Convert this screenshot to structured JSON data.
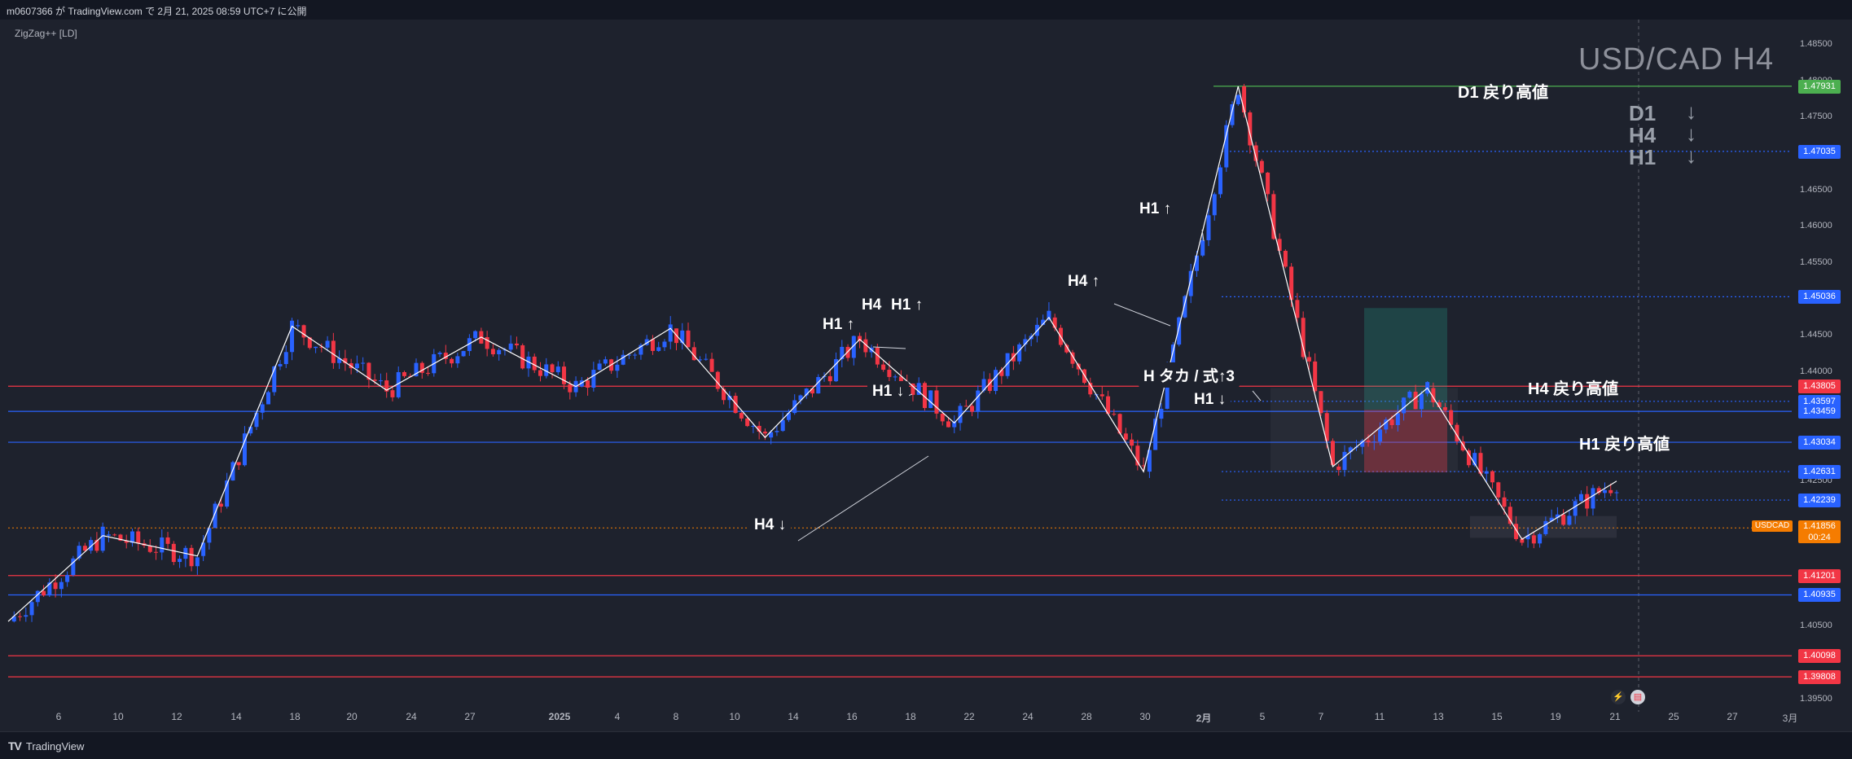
{
  "header": {
    "publish_info": "m0607366 が TradingView.com で 2月 21, 2025 08:59 UTC+7 に公開"
  },
  "indicator": "ZigZag++ [LD]",
  "footer": {
    "brand": "TradingView",
    "brand_logo": "TV"
  },
  "watermark": "USD/CAD H4",
  "trend_panel": [
    {
      "tf": "D1",
      "arrow": "↓"
    },
    {
      "tf": "H4",
      "arrow": "↓"
    },
    {
      "tf": "H1",
      "arrow": "↓"
    }
  ],
  "annotations": {
    "d1_high": "D1 戻り高値",
    "h4_high": "H4 戻り高値",
    "h1_high": "H1 戻り高値",
    "h1_up_a": "H1 ↑",
    "h4_a": "H4",
    "h1_up_b": "H1 ↑",
    "h1_down_a": "H1 ↓",
    "h4_down": "H4 ↓",
    "h4_up": "H4 ↑",
    "h1_up_c": "H1 ↑",
    "takane": "H タカ / 式↑3",
    "h1_down_b": "H1 ↓"
  },
  "symbol": {
    "ticker": "USDCAD",
    "price": "1.41856",
    "countdown": "00:24"
  },
  "price_labels": [
    {
      "value": "1.47931",
      "color": "#4caf50",
      "line": "#4caf50",
      "price": 1.47931,
      "style": "solid"
    },
    {
      "value": "1.47035",
      "color": "#2962ff",
      "line": "#2962ff",
      "price": 1.47035,
      "style": "dotted"
    },
    {
      "value": "1.45036",
      "color": "#2962ff",
      "line": "#2962ff",
      "price": 1.45036,
      "style": "dotted"
    },
    {
      "value": "1.43805",
      "color": "#f23645",
      "line": "#f23645",
      "price": 1.43805,
      "style": "solid"
    },
    {
      "value": "1.43597",
      "color": "#2962ff",
      "line": "#2962ff",
      "price": 1.43597,
      "style": "dotted"
    },
    {
      "value": "1.43459",
      "color": "#2962ff",
      "line": "#2962ff",
      "price": 1.43459,
      "style": "solid"
    },
    {
      "value": "1.43034",
      "color": "#2962ff",
      "line": "#2962ff",
      "price": 1.43034,
      "style": "solid"
    },
    {
      "value": "1.42631",
      "color": "#2962ff",
      "line": "#2962ff",
      "price": 1.42631,
      "style": "dotted"
    },
    {
      "value": "1.42239",
      "color": "#2962ff",
      "line": "#2962ff",
      "price": 1.42239,
      "style": "dotted"
    },
    {
      "value": "1.41201",
      "color": "#f23645",
      "line": "#f23645",
      "price": 1.41201,
      "style": "solid"
    },
    {
      "value": "1.40935",
      "color": "#2962ff",
      "line": "#2962ff",
      "price": 1.40935,
      "style": "solid"
    },
    {
      "value": "1.40098",
      "color": "#f23645",
      "line": "#f23645",
      "price": 1.40098,
      "style": "solid"
    },
    {
      "value": "1.39808",
      "color": "#f23645",
      "line": "#f23645",
      "price": 1.39808,
      "style": "solid"
    }
  ],
  "chart_data": {
    "type": "candlestick",
    "title": "USD/CAD H4",
    "y_axis_ticks": [
      "1.48500",
      "1.48000",
      "1.47500",
      "1.47000",
      "1.46500",
      "1.46000",
      "1.45500",
      "1.45000",
      "1.44500",
      "1.44000",
      "1.42500",
      "1.40500",
      "1.39500"
    ],
    "ylim": [
      1.3935,
      1.4868
    ],
    "x_axis_ticks": [
      "6",
      "10",
      "12",
      "14",
      "18",
      "20",
      "24",
      "27",
      "2025",
      "4",
      "8",
      "10",
      "14",
      "16",
      "18",
      "22",
      "24",
      "28",
      "30",
      "2月",
      "5",
      "7",
      "11",
      "13",
      "15",
      "19",
      "21",
      "25",
      "27",
      "3月"
    ],
    "zigzag_swings": [
      1.4057,
      1.4175,
      1.4147,
      1.4463,
      1.4375,
      1.4448,
      1.438,
      1.446,
      1.431,
      1.4445,
      1.433,
      1.4475,
      1.4263,
      1.4793,
      1.427,
      1.4378,
      1.417,
      1.425
    ],
    "current_price": 1.41856,
    "colors": {
      "up": "#2962ff",
      "down": "#f23645",
      "zigzag": "#ffffff"
    }
  }
}
